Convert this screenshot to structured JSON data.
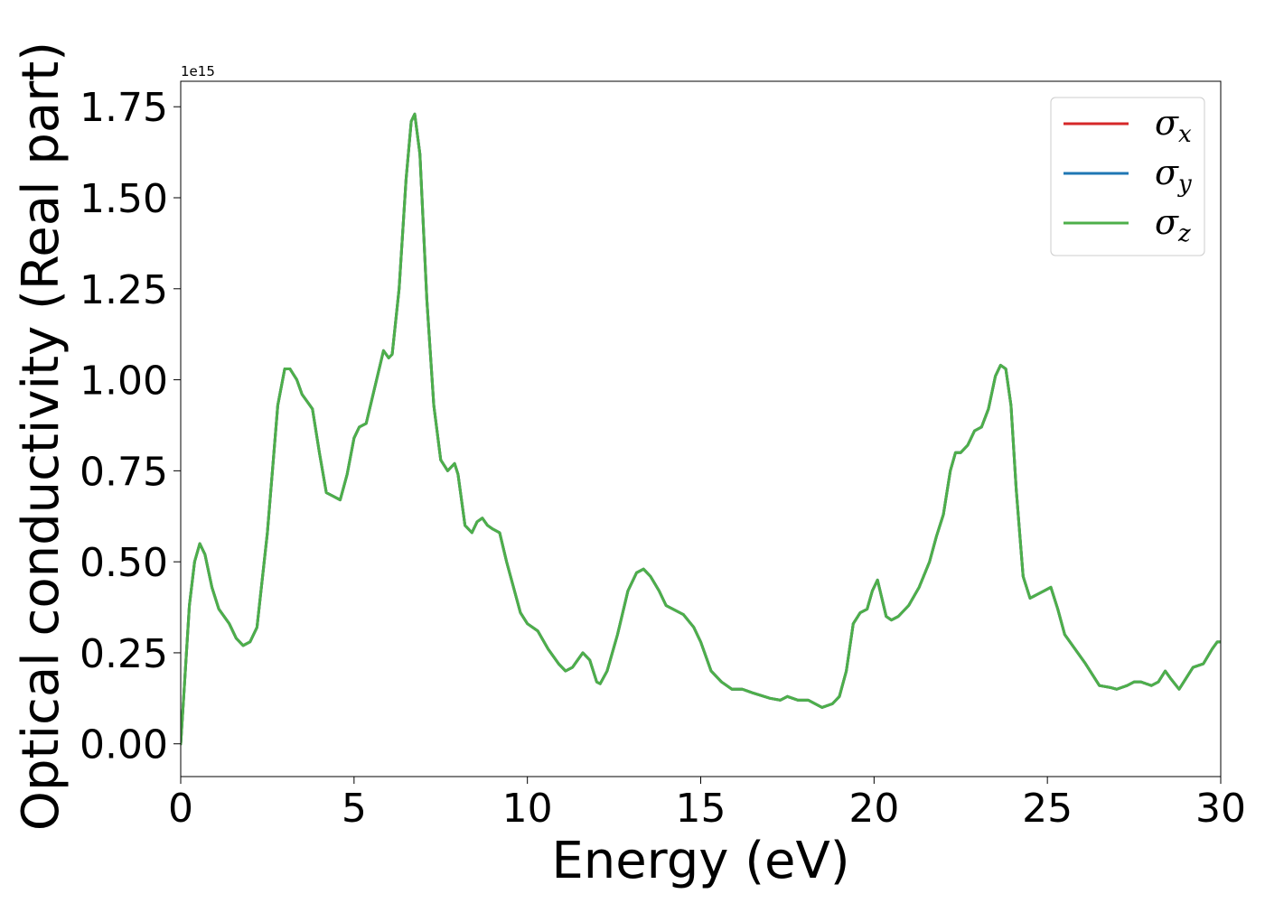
{
  "chart_data": {
    "type": "line",
    "title": "",
    "xlabel": "Energy (eV)",
    "ylabel": "Optical conductivity (Real part)",
    "y_offset_label": "1e15",
    "xlim": [
      0,
      30
    ],
    "ylim": [
      -0.09,
      1.82
    ],
    "x_ticks": [
      0,
      5,
      10,
      15,
      20,
      25,
      30
    ],
    "x_tick_labels": [
      "0",
      "5",
      "10",
      "15",
      "20",
      "25",
      "30"
    ],
    "y_ticks": [
      0.0,
      0.25,
      0.5,
      0.75,
      1.0,
      1.25,
      1.5,
      1.75
    ],
    "y_tick_labels": [
      "0.00",
      "0.25",
      "0.50",
      "0.75",
      "1.00",
      "1.25",
      "1.50",
      "1.75"
    ],
    "grid": false,
    "legend_position": "top-right",
    "x": [
      0.0,
      0.1,
      0.25,
      0.4,
      0.55,
      0.7,
      0.9,
      1.1,
      1.4,
      1.6,
      1.8,
      2.0,
      2.2,
      2.5,
      2.8,
      3.0,
      3.15,
      3.35,
      3.5,
      3.65,
      3.8,
      4.0,
      4.2,
      4.4,
      4.6,
      4.8,
      5.0,
      5.15,
      5.35,
      5.5,
      5.7,
      5.85,
      6.0,
      6.1,
      6.3,
      6.5,
      6.65,
      6.75,
      6.9,
      7.1,
      7.3,
      7.5,
      7.7,
      7.9,
      8.0,
      8.2,
      8.4,
      8.55,
      8.7,
      8.85,
      9.0,
      9.2,
      9.4,
      9.6,
      9.8,
      10.0,
      10.3,
      10.6,
      10.9,
      11.1,
      11.3,
      11.6,
      11.8,
      12.0,
      12.1,
      12.3,
      12.6,
      12.9,
      13.15,
      13.35,
      13.55,
      13.8,
      14.0,
      14.2,
      14.5,
      14.8,
      15.0,
      15.3,
      15.6,
      15.9,
      16.2,
      16.5,
      17.0,
      17.3,
      17.5,
      17.8,
      18.1,
      18.5,
      18.8,
      19.0,
      19.2,
      19.4,
      19.6,
      19.8,
      19.95,
      20.1,
      20.2,
      20.35,
      20.5,
      20.7,
      21.0,
      21.3,
      21.6,
      21.8,
      22.0,
      22.2,
      22.35,
      22.5,
      22.7,
      22.9,
      23.1,
      23.3,
      23.5,
      23.65,
      23.8,
      23.95,
      24.1,
      24.3,
      24.5,
      24.7,
      24.9,
      25.1,
      25.3,
      25.5,
      25.8,
      26.1,
      26.5,
      26.8,
      27.0,
      27.3,
      27.5,
      27.7,
      28.0,
      28.2,
      28.4,
      28.55,
      28.8,
      29.0,
      29.2,
      29.5,
      29.75,
      29.9,
      30.0
    ],
    "series": [
      {
        "name": "σx",
        "color": "#d62728",
        "values": [
          0.0,
          0.15,
          0.38,
          0.5,
          0.55,
          0.52,
          0.43,
          0.37,
          0.33,
          0.29,
          0.27,
          0.28,
          0.32,
          0.58,
          0.93,
          1.03,
          1.03,
          1.0,
          0.96,
          0.94,
          0.92,
          0.8,
          0.69,
          0.68,
          0.67,
          0.74,
          0.84,
          0.87,
          0.88,
          0.94,
          1.02,
          1.08,
          1.06,
          1.07,
          1.25,
          1.55,
          1.71,
          1.73,
          1.62,
          1.22,
          0.93,
          0.78,
          0.75,
          0.77,
          0.74,
          0.6,
          0.58,
          0.61,
          0.62,
          0.6,
          0.59,
          0.58,
          0.5,
          0.43,
          0.36,
          0.33,
          0.31,
          0.26,
          0.22,
          0.2,
          0.21,
          0.25,
          0.23,
          0.17,
          0.165,
          0.2,
          0.3,
          0.42,
          0.47,
          0.48,
          0.46,
          0.42,
          0.38,
          0.37,
          0.355,
          0.32,
          0.28,
          0.2,
          0.17,
          0.15,
          0.15,
          0.14,
          0.125,
          0.12,
          0.13,
          0.12,
          0.12,
          0.1,
          0.11,
          0.13,
          0.2,
          0.33,
          0.36,
          0.37,
          0.42,
          0.45,
          0.41,
          0.35,
          0.34,
          0.35,
          0.38,
          0.43,
          0.5,
          0.57,
          0.63,
          0.75,
          0.8,
          0.8,
          0.82,
          0.86,
          0.87,
          0.92,
          1.01,
          1.04,
          1.03,
          0.93,
          0.7,
          0.46,
          0.4,
          0.41,
          0.42,
          0.43,
          0.37,
          0.3,
          0.26,
          0.22,
          0.16,
          0.155,
          0.15,
          0.16,
          0.17,
          0.17,
          0.16,
          0.17,
          0.2,
          0.18,
          0.15,
          0.18,
          0.21,
          0.22,
          0.26,
          0.28,
          0.28
        ]
      },
      {
        "name": "σy",
        "color": "#1f77b4",
        "values": [
          0.0,
          0.15,
          0.38,
          0.5,
          0.55,
          0.52,
          0.43,
          0.37,
          0.33,
          0.29,
          0.27,
          0.28,
          0.32,
          0.58,
          0.93,
          1.03,
          1.03,
          1.0,
          0.96,
          0.94,
          0.92,
          0.8,
          0.69,
          0.68,
          0.67,
          0.74,
          0.84,
          0.87,
          0.88,
          0.94,
          1.02,
          1.08,
          1.06,
          1.07,
          1.25,
          1.55,
          1.71,
          1.73,
          1.62,
          1.22,
          0.93,
          0.78,
          0.75,
          0.77,
          0.74,
          0.6,
          0.58,
          0.61,
          0.62,
          0.6,
          0.59,
          0.58,
          0.5,
          0.43,
          0.36,
          0.33,
          0.31,
          0.26,
          0.22,
          0.2,
          0.21,
          0.25,
          0.23,
          0.17,
          0.165,
          0.2,
          0.3,
          0.42,
          0.47,
          0.48,
          0.46,
          0.42,
          0.38,
          0.37,
          0.355,
          0.32,
          0.28,
          0.2,
          0.17,
          0.15,
          0.15,
          0.14,
          0.125,
          0.12,
          0.13,
          0.12,
          0.12,
          0.1,
          0.11,
          0.13,
          0.2,
          0.33,
          0.36,
          0.37,
          0.42,
          0.45,
          0.41,
          0.35,
          0.34,
          0.35,
          0.38,
          0.43,
          0.5,
          0.57,
          0.63,
          0.75,
          0.8,
          0.8,
          0.82,
          0.86,
          0.87,
          0.92,
          1.01,
          1.04,
          1.03,
          0.93,
          0.7,
          0.46,
          0.4,
          0.41,
          0.42,
          0.43,
          0.37,
          0.3,
          0.26,
          0.22,
          0.16,
          0.155,
          0.15,
          0.16,
          0.17,
          0.17,
          0.16,
          0.17,
          0.2,
          0.18,
          0.15,
          0.18,
          0.21,
          0.22,
          0.26,
          0.28,
          0.28
        ]
      },
      {
        "name": "σz",
        "color": "#4daf4a",
        "values": [
          0.0,
          0.15,
          0.38,
          0.5,
          0.55,
          0.52,
          0.43,
          0.37,
          0.33,
          0.29,
          0.27,
          0.28,
          0.32,
          0.58,
          0.93,
          1.03,
          1.03,
          1.0,
          0.96,
          0.94,
          0.92,
          0.8,
          0.69,
          0.68,
          0.67,
          0.74,
          0.84,
          0.87,
          0.88,
          0.94,
          1.02,
          1.08,
          1.06,
          1.07,
          1.25,
          1.55,
          1.71,
          1.73,
          1.62,
          1.22,
          0.93,
          0.78,
          0.75,
          0.77,
          0.74,
          0.6,
          0.58,
          0.61,
          0.62,
          0.6,
          0.59,
          0.58,
          0.5,
          0.43,
          0.36,
          0.33,
          0.31,
          0.26,
          0.22,
          0.2,
          0.21,
          0.25,
          0.23,
          0.17,
          0.165,
          0.2,
          0.3,
          0.42,
          0.47,
          0.48,
          0.46,
          0.42,
          0.38,
          0.37,
          0.355,
          0.32,
          0.28,
          0.2,
          0.17,
          0.15,
          0.15,
          0.14,
          0.125,
          0.12,
          0.13,
          0.12,
          0.12,
          0.1,
          0.11,
          0.13,
          0.2,
          0.33,
          0.36,
          0.37,
          0.42,
          0.45,
          0.41,
          0.35,
          0.34,
          0.35,
          0.38,
          0.43,
          0.5,
          0.57,
          0.63,
          0.75,
          0.8,
          0.8,
          0.82,
          0.86,
          0.87,
          0.92,
          1.01,
          1.04,
          1.03,
          0.93,
          0.7,
          0.46,
          0.4,
          0.41,
          0.42,
          0.43,
          0.37,
          0.3,
          0.26,
          0.22,
          0.16,
          0.155,
          0.15,
          0.16,
          0.17,
          0.17,
          0.16,
          0.17,
          0.2,
          0.18,
          0.15,
          0.18,
          0.21,
          0.22,
          0.26,
          0.28,
          0.28
        ]
      }
    ],
    "legend": {
      "entries": [
        {
          "symbol": "σ",
          "subscript": "x"
        },
        {
          "symbol": "σ",
          "subscript": "y"
        },
        {
          "symbol": "σ",
          "subscript": "z"
        }
      ]
    }
  }
}
